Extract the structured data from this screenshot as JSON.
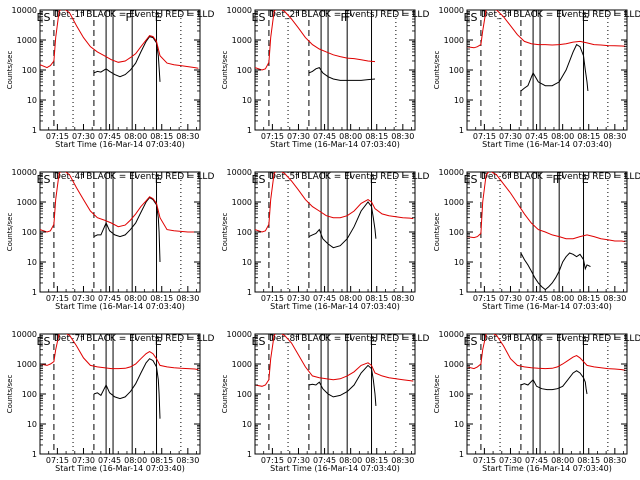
{
  "colors": {
    "events": "#000000",
    "lld": "#e00000",
    "axis": "#000000",
    "background": "#ffffff"
  },
  "shared": {
    "ylabel": "Counts/sec",
    "xlabel": "Start Time (16-Mar-14 07:03:40)",
    "xticks": [
      "07:15",
      "07:30",
      "07:45",
      "08:00",
      "08:15",
      "08:30"
    ],
    "xtick_minutes": [
      15,
      30,
      45,
      60,
      75,
      90
    ],
    "xlim_minutes": [
      5,
      97
    ],
    "yticks": [
      "1",
      "10",
      "100",
      "1000",
      "10000"
    ],
    "ylim": [
      1,
      10000
    ],
    "yscale": "log",
    "event_markers": {
      "dashed": [
        13,
        36
      ],
      "dotted": [
        24,
        86
      ],
      "solid": [
        43,
        47,
        58,
        72
      ]
    }
  },
  "chart_data": [
    {
      "type": "line",
      "title": "Det_1f BLACK = Events, RED = LLD",
      "marker_labels": [
        {
          "text": "E",
          "x": 5
        },
        {
          "text": "S",
          "x": 9
        },
        {
          "text": "F",
          "x": 56
        },
        {
          "text": "E",
          "x": 73
        }
      ],
      "series": [
        {
          "name": "Events",
          "x": [
            36,
            38,
            40,
            43,
            45,
            48,
            51,
            54,
            57,
            60,
            63,
            66,
            68,
            70,
            72,
            73,
            73.5,
            74
          ],
          "y": [
            80,
            90,
            85,
            110,
            90,
            70,
            60,
            70,
            100,
            170,
            400,
            900,
            1300,
            1200,
            800,
            300,
            120,
            40
          ]
        },
        {
          "name": "LLD",
          "x": [
            5,
            9,
            11,
            13,
            14,
            16,
            18,
            22,
            26,
            30,
            34,
            38,
            42,
            46,
            50,
            54,
            57,
            60,
            63,
            66,
            68,
            70,
            72,
            74,
            78,
            82,
            86,
            90,
            94,
            96
          ],
          "y": [
            150,
            120,
            140,
            200,
            1200,
            9000,
            12000,
            8000,
            3000,
            1200,
            600,
            400,
            300,
            220,
            180,
            200,
            260,
            350,
            600,
            1000,
            1400,
            1300,
            900,
            300,
            170,
            150,
            140,
            130,
            120,
            115
          ]
        }
      ]
    },
    {
      "type": "line",
      "title": "Det_2f BLACK = Events, RED = LLD",
      "marker_labels": [
        {
          "text": "E",
          "x": 5
        },
        {
          "text": "S",
          "x": 9
        },
        {
          "text": "F",
          "x": 56
        },
        {
          "text": "F",
          "x": 58
        }
      ],
      "series": [
        {
          "name": "Events",
          "x": [
            36,
            38,
            40,
            42,
            44,
            47,
            50,
            54,
            58,
            62,
            66,
            70,
            74
          ],
          "y": [
            80,
            90,
            110,
            120,
            80,
            60,
            50,
            45,
            45,
            45,
            45,
            48,
            50
          ]
        },
        {
          "name": "LLD",
          "x": [
            5,
            9,
            11,
            13,
            14,
            16,
            18,
            22,
            26,
            30,
            34,
            38,
            42,
            46,
            50,
            54,
            58,
            62,
            66,
            70,
            74
          ],
          "y": [
            120,
            100,
            110,
            180,
            1200,
            9000,
            12000,
            9000,
            5000,
            2500,
            1200,
            700,
            500,
            400,
            320,
            280,
            250,
            240,
            220,
            200,
            190
          ]
        }
      ]
    },
    {
      "type": "line",
      "title": "Det_3f BLACK = Events, RED = LLD",
      "marker_labels": [
        {
          "text": "E",
          "x": 5
        },
        {
          "text": "S",
          "x": 9
        },
        {
          "text": "E",
          "x": 73
        }
      ],
      "series": [
        {
          "name": "Events",
          "x": [
            36,
            38,
            40,
            43,
            46,
            50,
            54,
            58,
            62,
            66,
            68,
            70,
            72,
            73,
            74,
            74.5
          ],
          "y": [
            20,
            25,
            30,
            80,
            40,
            30,
            30,
            40,
            100,
            400,
            700,
            600,
            300,
            100,
            40,
            20
          ]
        },
        {
          "name": "LLD",
          "x": [
            5,
            9,
            11,
            13,
            14,
            16,
            18,
            22,
            26,
            30,
            34,
            38,
            42,
            46,
            50,
            54,
            58,
            62,
            66,
            70,
            74,
            78,
            82,
            86,
            90,
            94,
            96
          ],
          "y": [
            600,
            550,
            600,
            700,
            2000,
            10000,
            12000,
            10000,
            6000,
            3000,
            1500,
            900,
            750,
            700,
            700,
            680,
            700,
            750,
            850,
            900,
            800,
            700,
            680,
            650,
            640,
            630,
            620
          ]
        }
      ]
    },
    {
      "type": "line",
      "title": "Det_4f BLACK = Events, RED = LLD",
      "marker_labels": [
        {
          "text": "E",
          "x": 5
        },
        {
          "text": "S",
          "x": 9
        },
        {
          "text": "E",
          "x": 73
        }
      ],
      "series": [
        {
          "name": "Events",
          "x": [
            36,
            38,
            40,
            43,
            45,
            48,
            51,
            54,
            57,
            60,
            63,
            66,
            68,
            70,
            72,
            73,
            73.5,
            74
          ],
          "y": [
            70,
            80,
            80,
            200,
            110,
            80,
            70,
            80,
            120,
            200,
            450,
            1000,
            1400,
            1200,
            800,
            300,
            100,
            10
          ]
        },
        {
          "name": "LLD",
          "x": [
            5,
            9,
            11,
            13,
            14,
            16,
            18,
            22,
            26,
            30,
            34,
            38,
            42,
            46,
            50,
            54,
            57,
            60,
            63,
            66,
            68,
            70,
            72,
            74,
            78,
            82,
            86,
            90,
            94,
            96
          ],
          "y": [
            120,
            100,
            110,
            180,
            1200,
            9000,
            12000,
            8000,
            3000,
            1200,
            500,
            300,
            250,
            200,
            150,
            170,
            250,
            400,
            700,
            1100,
            1500,
            1300,
            900,
            300,
            120,
            110,
            105,
            100,
            100,
            100
          ]
        }
      ]
    },
    {
      "type": "line",
      "title": "Det_5f BLACK = Events, RED = LLD",
      "marker_labels": [
        {
          "text": "E",
          "x": 5
        },
        {
          "text": "S",
          "x": 9
        },
        {
          "text": "E",
          "x": 73
        }
      ],
      "series": [
        {
          "name": "Events",
          "x": [
            36,
            38,
            40,
            42,
            44,
            47,
            50,
            54,
            58,
            62,
            66,
            70,
            72,
            73,
            74,
            74.5
          ],
          "y": [
            70,
            80,
            90,
            120,
            60,
            40,
            30,
            35,
            60,
            150,
            500,
            1000,
            700,
            300,
            120,
            60
          ]
        },
        {
          "name": "LLD",
          "x": [
            5,
            9,
            11,
            13,
            14,
            16,
            18,
            22,
            26,
            30,
            34,
            38,
            42,
            46,
            50,
            54,
            58,
            62,
            66,
            70,
            72,
            74,
            78,
            82,
            86,
            90,
            94,
            96
          ],
          "y": [
            120,
            100,
            110,
            180,
            1200,
            9000,
            12000,
            9000,
            5000,
            2500,
            1200,
            700,
            500,
            350,
            300,
            300,
            350,
            500,
            900,
            1200,
            1000,
            600,
            400,
            350,
            320,
            300,
            290,
            280
          ]
        }
      ]
    },
    {
      "type": "line",
      "title": "Det_6f BLACK = Events, RED = LLD",
      "marker_labels": [
        {
          "text": "E",
          "x": 5
        },
        {
          "text": "S",
          "x": 9
        },
        {
          "text": "F",
          "x": 56
        },
        {
          "text": "F",
          "x": 58
        },
        {
          "text": "E",
          "x": 73
        }
      ],
      "series": [
        {
          "name": "Events",
          "x": [
            36,
            38,
            40,
            42,
            44,
            46,
            48,
            50,
            52,
            54,
            56,
            58,
            60,
            62,
            64,
            66,
            68,
            70,
            72,
            73,
            74,
            76
          ],
          "y": [
            20,
            12,
            8,
            5,
            3,
            2,
            1.5,
            1.2,
            1.5,
            2,
            3,
            5,
            10,
            15,
            20,
            18,
            15,
            18,
            12,
            6,
            8,
            7
          ]
        },
        {
          "name": "LLD",
          "x": [
            5,
            9,
            11,
            13,
            14,
            16,
            18,
            22,
            26,
            30,
            34,
            38,
            42,
            46,
            50,
            54,
            58,
            62,
            66,
            70,
            74,
            78,
            82,
            86,
            90,
            94,
            96
          ],
          "y": [
            70,
            65,
            70,
            90,
            1000,
            8000,
            11000,
            8000,
            4000,
            2000,
            900,
            400,
            200,
            120,
            100,
            80,
            70,
            60,
            60,
            70,
            80,
            70,
            60,
            55,
            50,
            50,
            48
          ]
        }
      ]
    },
    {
      "type": "line",
      "title": "Det_7f BLACK = Events, RED = LLD",
      "marker_labels": [
        {
          "text": "E",
          "x": 5
        },
        {
          "text": "S",
          "x": 9
        },
        {
          "text": "E",
          "x": 73
        }
      ],
      "series": [
        {
          "name": "Events",
          "x": [
            36,
            38,
            40,
            43,
            45,
            48,
            51,
            54,
            57,
            60,
            63,
            66,
            68,
            70,
            72,
            73,
            73.5,
            74
          ],
          "y": [
            100,
            110,
            90,
            200,
            110,
            80,
            70,
            80,
            120,
            220,
            500,
            1100,
            1500,
            1300,
            800,
            300,
            100,
            15
          ]
        },
        {
          "name": "LLD",
          "x": [
            5,
            9,
            11,
            13,
            14,
            16,
            18,
            22,
            26,
            30,
            34,
            38,
            42,
            46,
            50,
            54,
            57,
            60,
            63,
            66,
            68,
            70,
            72,
            74,
            78,
            82,
            86,
            90,
            94,
            96
          ],
          "y": [
            1000,
            900,
            1000,
            1200,
            3000,
            10000,
            12000,
            9000,
            4000,
            1600,
            900,
            800,
            750,
            700,
            700,
            720,
            800,
            1000,
            1500,
            2200,
            2600,
            2200,
            1500,
            900,
            800,
            750,
            720,
            700,
            680,
            650
          ]
        }
      ]
    },
    {
      "type": "line",
      "title": "Det_8f BLACK = Events, RED = LLD",
      "marker_labels": [
        {
          "text": "E",
          "x": 5
        },
        {
          "text": "S",
          "x": 9
        },
        {
          "text": "E",
          "x": 73
        }
      ],
      "series": [
        {
          "name": "Events",
          "x": [
            36,
            38,
            40,
            42,
            44,
            47,
            50,
            54,
            58,
            62,
            66,
            70,
            72,
            73,
            74,
            74.5
          ],
          "y": [
            200,
            210,
            200,
            250,
            150,
            100,
            80,
            90,
            120,
            200,
            500,
            900,
            700,
            300,
            100,
            40
          ]
        },
        {
          "name": "LLD",
          "x": [
            5,
            9,
            11,
            13,
            14,
            16,
            18,
            22,
            26,
            30,
            34,
            38,
            42,
            46,
            50,
            54,
            58,
            62,
            66,
            70,
            72,
            74,
            78,
            82,
            86,
            90,
            94,
            96
          ],
          "y": [
            200,
            180,
            200,
            300,
            1500,
            9000,
            12000,
            9000,
            5000,
            2000,
            800,
            400,
            350,
            320,
            300,
            320,
            400,
            550,
            900,
            1100,
            900,
            500,
            400,
            350,
            320,
            300,
            280,
            270
          ]
        }
      ]
    },
    {
      "type": "line",
      "title": "Det_9f BLACK = Events, RED = LLD",
      "marker_labels": [
        {
          "text": "E",
          "x": 5
        },
        {
          "text": "S",
          "x": 9
        },
        {
          "text": "E",
          "x": 73
        }
      ],
      "series": [
        {
          "name": "Events",
          "x": [
            36,
            38,
            40,
            43,
            45,
            48,
            51,
            54,
            57,
            60,
            63,
            66,
            68,
            70,
            72,
            73,
            73.5,
            74
          ],
          "y": [
            200,
            220,
            200,
            300,
            180,
            150,
            140,
            140,
            150,
            180,
            300,
            500,
            600,
            500,
            350,
            250,
            150,
            100
          ]
        },
        {
          "name": "LLD",
          "x": [
            5,
            9,
            11,
            13,
            14,
            16,
            18,
            22,
            26,
            30,
            34,
            38,
            42,
            46,
            50,
            54,
            57,
            60,
            63,
            66,
            68,
            70,
            72,
            74,
            78,
            82,
            86,
            90,
            94,
            96
          ],
          "y": [
            800,
            700,
            800,
            1000,
            3000,
            10000,
            12000,
            9000,
            4000,
            1500,
            900,
            800,
            750,
            720,
            700,
            720,
            800,
            1000,
            1300,
            1700,
            1900,
            1600,
            1200,
            900,
            800,
            750,
            700,
            680,
            650,
            620
          ]
        }
      ]
    }
  ]
}
